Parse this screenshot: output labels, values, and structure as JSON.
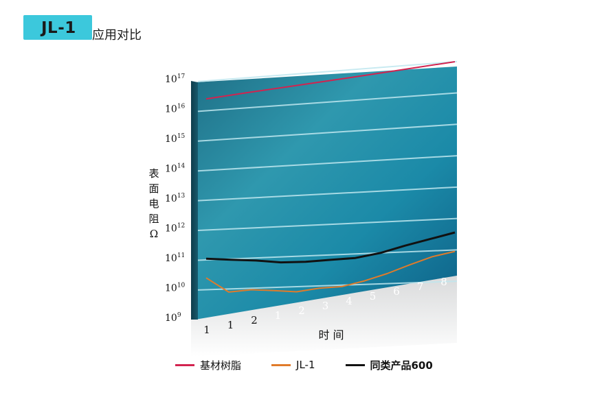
{
  "header": {
    "badge_text": "JL-1",
    "title_rest": "应用对比",
    "badge_color": "#3cc8dc"
  },
  "chart_data": {
    "type": "line",
    "title": "JL-1应用对比",
    "ylabel": "表面电阻Ω",
    "xlabel": "时 间",
    "y_scale": "log",
    "y_tick_labels": [
      {
        "base": "10",
        "exp": "9",
        "value": 1000000000.0
      },
      {
        "base": "10",
        "exp": "10",
        "value": 10000000000.0
      },
      {
        "base": "10",
        "exp": "11",
        "value": 100000000000.0
      },
      {
        "base": "10",
        "exp": "12",
        "value": 1000000000000.0
      },
      {
        "base": "10",
        "exp": "13",
        "value": 10000000000000.0
      },
      {
        "base": "10",
        "exp": "14",
        "value": 100000000000000.0
      },
      {
        "base": "10",
        "exp": "15",
        "value": 1000000000000000.0
      },
      {
        "base": "10",
        "exp": "16",
        "value": 1e+16
      },
      {
        "base": "10",
        "exp": "17",
        "value": 1e+17
      }
    ],
    "x_tick_labels": [
      "1",
      "1",
      "2",
      "1",
      "2",
      "3",
      "4",
      "5",
      "6",
      "7",
      "8"
    ],
    "ylim": [
      1000000000.0,
      1e+17
    ],
    "grid": true,
    "legend_position": "bottom",
    "series": [
      {
        "name": "基材树脂",
        "color": "#d2234f",
        "values": [
          2.5e+16,
          3.2e+16,
          4e+16,
          5e+16,
          6.3e+16,
          8e+16,
          1e+17
        ]
      },
      {
        "name": "JL-1",
        "color": "#e07b2a",
        "values": [
          25000000000.0,
          7900000000.0,
          8900000000.0,
          7900000000.0,
          6800000000.0,
          8400000000.0,
          9000000000.0,
          13000000000.0,
          21000000000.0,
          38000000000.0,
          65000000000.0,
          90000000000.0
        ]
      },
      {
        "name": "同类产品600",
        "color": "#111111",
        "values": [
          110000000000.0,
          94000000000.0,
          82000000000.0,
          66000000000.0,
          64000000000.0,
          69000000000.0,
          74000000000.0,
          100000000000.0,
          160000000000.0,
          240000000000.0,
          360000000000.0
        ]
      }
    ]
  }
}
